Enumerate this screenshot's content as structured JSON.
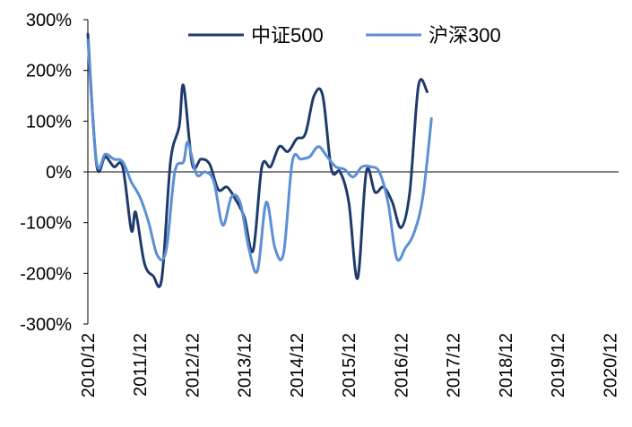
{
  "chart_data": {
    "type": "line",
    "title": "",
    "xlabel": "",
    "ylabel": "",
    "ylim": [
      -3,
      3
    ],
    "y_ticks": [
      {
        "value": 3,
        "label": "300%"
      },
      {
        "value": 2,
        "label": "200%"
      },
      {
        "value": 1,
        "label": "100%"
      },
      {
        "value": 0,
        "label": "0%"
      },
      {
        "value": -1,
        "label": "-100%"
      },
      {
        "value": -2,
        "label": "-200%"
      },
      {
        "value": -3,
        "label": "-300%"
      }
    ],
    "x_range": [
      "2010-12",
      "2021-02"
    ],
    "x_ticks": [
      "2010/12",
      "2011/12",
      "2012/12",
      "2013/12",
      "2014/12",
      "2015/12",
      "2016/12",
      "2017/12",
      "2018/12",
      "2019/12",
      "2020/12"
    ],
    "legend_position": "top-center",
    "series": [
      {
        "name": "中证500",
        "color": "#1f3b6b",
        "points": [
          {
            "x": "2010-12",
            "y": 2.72
          },
          {
            "x": "2011-02",
            "y": 0.15
          },
          {
            "x": "2011-04",
            "y": 0.3
          },
          {
            "x": "2011-06",
            "y": 0.1
          },
          {
            "x": "2011-08",
            "y": 0.1
          },
          {
            "x": "2011-10",
            "y": -1.15
          },
          {
            "x": "2011-11",
            "y": -0.8
          },
          {
            "x": "2012-01",
            "y": -1.8
          },
          {
            "x": "2012-03",
            "y": -2.05
          },
          {
            "x": "2012-05",
            "y": -2.1
          },
          {
            "x": "2012-07",
            "y": 0.2
          },
          {
            "x": "2012-09",
            "y": 0.9
          },
          {
            "x": "2012-10",
            "y": 1.7
          },
          {
            "x": "2012-12",
            "y": 0.15
          },
          {
            "x": "2013-02",
            "y": 0.25
          },
          {
            "x": "2013-04",
            "y": 0.15
          },
          {
            "x": "2013-06",
            "y": -0.35
          },
          {
            "x": "2013-08",
            "y": -0.3
          },
          {
            "x": "2013-10",
            "y": -0.55
          },
          {
            "x": "2013-12",
            "y": -0.9
          },
          {
            "x": "2014-02",
            "y": -1.55
          },
          {
            "x": "2014-04",
            "y": 0.1
          },
          {
            "x": "2014-06",
            "y": 0.1
          },
          {
            "x": "2014-08",
            "y": 0.5
          },
          {
            "x": "2014-10",
            "y": 0.4
          },
          {
            "x": "2014-12",
            "y": 0.65
          },
          {
            "x": "2015-02",
            "y": 0.75
          },
          {
            "x": "2015-04",
            "y": 1.5
          },
          {
            "x": "2015-06",
            "y": 1.5
          },
          {
            "x": "2015-08",
            "y": 0.05
          },
          {
            "x": "2015-10",
            "y": 0.0
          },
          {
            "x": "2015-12",
            "y": -0.6
          },
          {
            "x": "2016-02",
            "y": -2.1
          },
          {
            "x": "2016-04",
            "y": 0.0
          },
          {
            "x": "2016-06",
            "y": -0.4
          },
          {
            "x": "2016-08",
            "y": -0.3
          },
          {
            "x": "2016-10",
            "y": -0.6
          },
          {
            "x": "2016-12",
            "y": -1.1
          },
          {
            "x": "2017-02",
            "y": -0.4
          },
          {
            "x": "2017-04",
            "y": 1.7
          },
          {
            "x": "2017-06",
            "y": 1.58
          }
        ]
      },
      {
        "name": "沪深300",
        "color": "#5b8fd6",
        "points": [
          {
            "x": "2010-12",
            "y": 2.6
          },
          {
            "x": "2011-02",
            "y": 0.2
          },
          {
            "x": "2011-04",
            "y": 0.35
          },
          {
            "x": "2011-06",
            "y": 0.25
          },
          {
            "x": "2011-08",
            "y": 0.2
          },
          {
            "x": "2011-10",
            "y": -0.2
          },
          {
            "x": "2011-12",
            "y": -0.5
          },
          {
            "x": "2012-02",
            "y": -1.0
          },
          {
            "x": "2012-04",
            "y": -1.65
          },
          {
            "x": "2012-06",
            "y": -1.55
          },
          {
            "x": "2012-08",
            "y": 0.0
          },
          {
            "x": "2012-10",
            "y": 0.2
          },
          {
            "x": "2012-11",
            "y": 0.58
          },
          {
            "x": "2013-01",
            "y": -0.05
          },
          {
            "x": "2013-03",
            "y": 0.0
          },
          {
            "x": "2013-05",
            "y": -0.2
          },
          {
            "x": "2013-07",
            "y": -1.05
          },
          {
            "x": "2013-09",
            "y": -0.5
          },
          {
            "x": "2013-11",
            "y": -0.6
          },
          {
            "x": "2014-01",
            "y": -1.5
          },
          {
            "x": "2014-03",
            "y": -1.95
          },
          {
            "x": "2014-05",
            "y": -0.6
          },
          {
            "x": "2014-07",
            "y": -1.5
          },
          {
            "x": "2014-09",
            "y": -1.6
          },
          {
            "x": "2014-11",
            "y": 0.2
          },
          {
            "x": "2015-01",
            "y": 0.25
          },
          {
            "x": "2015-03",
            "y": 0.3
          },
          {
            "x": "2015-05",
            "y": 0.5
          },
          {
            "x": "2015-07",
            "y": 0.3
          },
          {
            "x": "2015-09",
            "y": 0.1
          },
          {
            "x": "2015-11",
            "y": 0.05
          },
          {
            "x": "2016-01",
            "y": -0.1
          },
          {
            "x": "2016-03",
            "y": 0.1
          },
          {
            "x": "2016-05",
            "y": 0.1
          },
          {
            "x": "2016-07",
            "y": 0.0
          },
          {
            "x": "2016-09",
            "y": -0.6
          },
          {
            "x": "2016-11",
            "y": -1.7
          },
          {
            "x": "2017-01",
            "y": -1.5
          },
          {
            "x": "2017-03",
            "y": -1.2
          },
          {
            "x": "2017-05",
            "y": -0.5
          },
          {
            "x": "2017-07",
            "y": 1.05
          }
        ]
      }
    ]
  }
}
